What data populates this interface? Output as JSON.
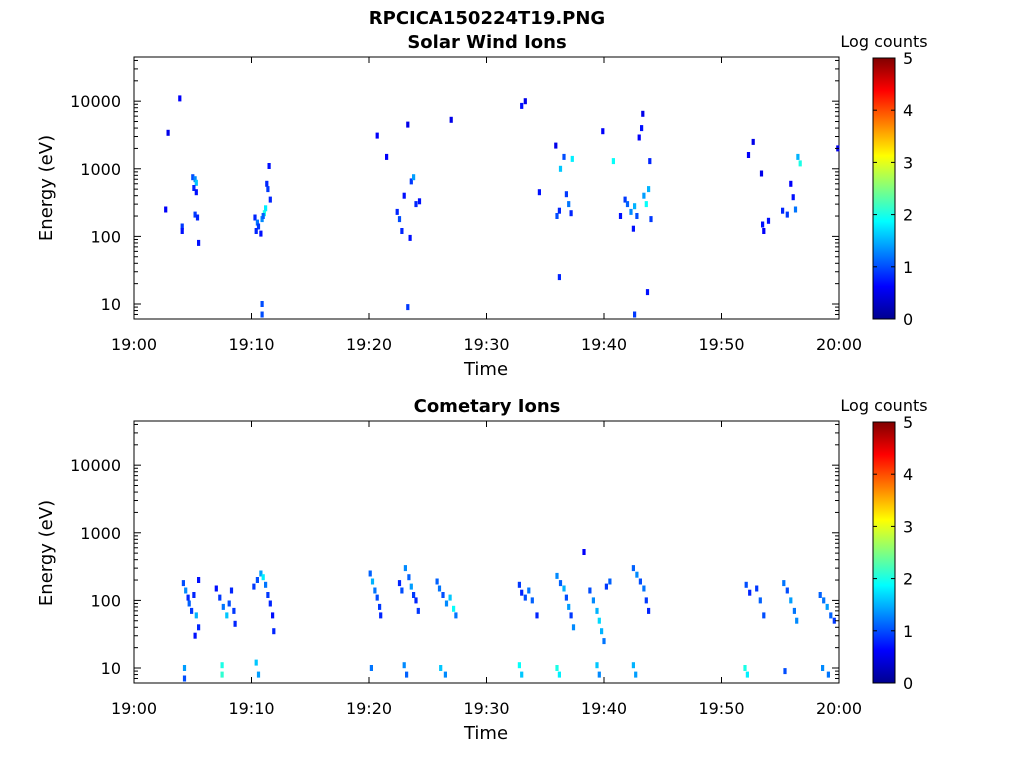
{
  "figure": {
    "title": "RPCICA150224T19.PNG"
  },
  "chart_data": [
    {
      "type": "heatmap",
      "title": "Solar Wind Ions",
      "xlabel": "Time",
      "ylabel": "Energy (eV)",
      "x_ticks": [
        "19:00",
        "19:10",
        "19:20",
        "19:30",
        "19:40",
        "19:50",
        "20:00"
      ],
      "x_range_minutes": [
        0,
        60
      ],
      "y_scale": "log",
      "y_ticks": [
        {
          "value": 10,
          "label": "10"
        },
        {
          "value": 100,
          "label": "100"
        },
        {
          "value": 1000,
          "label": "1000"
        },
        {
          "value": 10000,
          "label": "10000"
        }
      ],
      "ylim": [
        6,
        45000
      ],
      "colorbar": {
        "label": "Log counts",
        "ticks": [
          "0",
          "1",
          "2",
          "3",
          "4",
          "5"
        ],
        "range": [
          0,
          5
        ],
        "colormap": "jet"
      },
      "cells": [
        [
          3.9,
          11000,
          0.6
        ],
        [
          2.9,
          3400,
          0.5
        ],
        [
          2.7,
          250,
          0.6
        ],
        [
          4.1,
          140,
          0.9
        ],
        [
          4.1,
          120,
          0.7
        ],
        [
          5.0,
          750,
          1.0
        ],
        [
          5.2,
          700,
          1.3
        ],
        [
          5.3,
          620,
          1.6
        ],
        [
          5.1,
          520,
          0.8
        ],
        [
          5.3,
          450,
          0.7
        ],
        [
          5.2,
          210,
          0.9
        ],
        [
          5.4,
          190,
          0.8
        ],
        [
          5.5,
          80,
          0.7
        ],
        [
          10.3,
          190,
          0.8
        ],
        [
          10.5,
          160,
          1.2
        ],
        [
          10.6,
          140,
          0.9
        ],
        [
          10.4,
          120,
          0.8
        ],
        [
          10.8,
          110,
          0.7
        ],
        [
          10.9,
          180,
          1.3
        ],
        [
          11.1,
          220,
          2.0
        ],
        [
          11.2,
          260,
          1.8
        ],
        [
          11.0,
          200,
          1.1
        ],
        [
          11.3,
          600,
          0.8
        ],
        [
          11.5,
          1100,
          0.7
        ],
        [
          11.4,
          500,
          0.9
        ],
        [
          11.6,
          350,
          0.8
        ],
        [
          10.9,
          10,
          1.0
        ],
        [
          10.9,
          7,
          1.0
        ],
        [
          20.7,
          3100,
          0.6
        ],
        [
          21.5,
          1500,
          0.6
        ],
        [
          22.4,
          230,
          0.8
        ],
        [
          22.6,
          180,
          1.0
        ],
        [
          22.8,
          120,
          0.8
        ],
        [
          23.0,
          400,
          0.7
        ],
        [
          23.3,
          4500,
          0.5
        ],
        [
          23.6,
          650,
          0.9
        ],
        [
          23.8,
          750,
          1.4
        ],
        [
          24.0,
          300,
          0.8
        ],
        [
          24.3,
          330,
          0.7
        ],
        [
          23.5,
          95,
          0.7
        ],
        [
          23.3,
          9,
          0.9
        ],
        [
          27.0,
          5300,
          0.5
        ],
        [
          33.0,
          8500,
          0.7
        ],
        [
          33.3,
          10000,
          0.5
        ],
        [
          34.5,
          450,
          0.7
        ],
        [
          35.9,
          2200,
          0.5
        ],
        [
          36.0,
          200,
          1.0
        ],
        [
          36.2,
          240,
          0.8
        ],
        [
          36.3,
          1000,
          1.6
        ],
        [
          36.6,
          1500,
          1.0
        ],
        [
          36.8,
          420,
          0.9
        ],
        [
          37.0,
          300,
          1.2
        ],
        [
          37.2,
          220,
          0.8
        ],
        [
          37.3,
          1400,
          1.8
        ],
        [
          36.2,
          25,
          0.8
        ],
        [
          39.9,
          3600,
          0.6
        ],
        [
          40.8,
          1300,
          1.9
        ],
        [
          41.4,
          200,
          0.7
        ],
        [
          41.8,
          350,
          0.9
        ],
        [
          42.0,
          300,
          1.1
        ],
        [
          42.3,
          230,
          1.3
        ],
        [
          42.6,
          280,
          1.5
        ],
        [
          42.8,
          200,
          1.0
        ],
        [
          43.0,
          2900,
          0.6
        ],
        [
          43.2,
          4000,
          0.7
        ],
        [
          43.3,
          6500,
          0.5
        ],
        [
          43.4,
          400,
          1.4
        ],
        [
          43.6,
          300,
          1.9
        ],
        [
          43.8,
          500,
          1.5
        ],
        [
          43.9,
          1300,
          0.8
        ],
        [
          44.0,
          180,
          0.9
        ],
        [
          42.5,
          130,
          0.7
        ],
        [
          42.6,
          7,
          0.9
        ],
        [
          43.7,
          15,
          0.7
        ],
        [
          52.3,
          1600,
          0.6
        ],
        [
          52.7,
          2500,
          0.5
        ],
        [
          53.4,
          850,
          0.5
        ],
        [
          53.5,
          150,
          0.7
        ],
        [
          53.6,
          120,
          0.6
        ],
        [
          54.0,
          170,
          0.7
        ],
        [
          55.2,
          240,
          0.8
        ],
        [
          55.6,
          210,
          0.9
        ],
        [
          55.9,
          600,
          0.6
        ],
        [
          56.1,
          380,
          0.7
        ],
        [
          56.3,
          250,
          1.2
        ],
        [
          56.5,
          1500,
          1.5
        ],
        [
          56.7,
          1200,
          2.0
        ],
        [
          59.9,
          2000,
          0.5
        ]
      ]
    },
    {
      "type": "heatmap",
      "title": "Cometary Ions",
      "xlabel": "Time",
      "ylabel": "Energy (eV)",
      "x_ticks": [
        "19:00",
        "19:10",
        "19:20",
        "19:30",
        "19:40",
        "19:50",
        "20:00"
      ],
      "x_range_minutes": [
        0,
        60
      ],
      "y_scale": "log",
      "y_ticks": [
        {
          "value": 10,
          "label": "10"
        },
        {
          "value": 100,
          "label": "100"
        },
        {
          "value": 1000,
          "label": "1000"
        },
        {
          "value": 10000,
          "label": "10000"
        }
      ],
      "ylim": [
        6,
        45000
      ],
      "colorbar": {
        "label": "Log counts",
        "ticks": [
          "0",
          "1",
          "2",
          "3",
          "4",
          "5"
        ],
        "range": [
          0,
          5
        ],
        "colormap": "jet"
      },
      "cells": [
        [
          4.2,
          180,
          1.0
        ],
        [
          4.4,
          140,
          1.3
        ],
        [
          4.6,
          110,
          0.8
        ],
        [
          4.7,
          90,
          1.1
        ],
        [
          4.9,
          70,
          0.9
        ],
        [
          5.1,
          120,
          0.8
        ],
        [
          5.3,
          60,
          1.5
        ],
        [
          5.5,
          40,
          0.8
        ],
        [
          5.2,
          30,
          0.7
        ],
        [
          5.5,
          200,
          0.7
        ],
        [
          7.0,
          150,
          0.7
        ],
        [
          7.3,
          110,
          0.9
        ],
        [
          7.6,
          80,
          1.2
        ],
        [
          7.9,
          60,
          1.6
        ],
        [
          8.1,
          90,
          1.0
        ],
        [
          8.3,
          140,
          0.8
        ],
        [
          8.5,
          70,
          0.9
        ],
        [
          8.6,
          45,
          0.8
        ],
        [
          10.2,
          160,
          0.9
        ],
        [
          10.5,
          200,
          1.0
        ],
        [
          10.8,
          250,
          1.4
        ],
        [
          11.0,
          220,
          1.8
        ],
        [
          11.2,
          170,
          1.2
        ],
        [
          11.4,
          120,
          0.9
        ],
        [
          11.6,
          90,
          0.8
        ],
        [
          11.8,
          60,
          0.7
        ],
        [
          11.9,
          35,
          0.8
        ],
        [
          20.1,
          250,
          1.1
        ],
        [
          20.3,
          190,
          1.5
        ],
        [
          20.5,
          140,
          1.2
        ],
        [
          20.7,
          110,
          1.0
        ],
        [
          20.9,
          80,
          0.9
        ],
        [
          21.0,
          60,
          0.8
        ],
        [
          22.6,
          180,
          0.8
        ],
        [
          22.8,
          140,
          1.0
        ],
        [
          23.1,
          300,
          1.3
        ],
        [
          23.4,
          220,
          1.1
        ],
        [
          23.6,
          160,
          1.4
        ],
        [
          23.8,
          120,
          0.9
        ],
        [
          24.0,
          100,
          0.8
        ],
        [
          24.2,
          70,
          0.9
        ],
        [
          25.8,
          190,
          1.1
        ],
        [
          26.0,
          150,
          1.2
        ],
        [
          26.3,
          120,
          1.0
        ],
        [
          26.6,
          90,
          1.3
        ],
        [
          26.9,
          110,
          1.6
        ],
        [
          27.2,
          75,
          1.9
        ],
        [
          27.4,
          60,
          1.2
        ],
        [
          32.8,
          170,
          0.9
        ],
        [
          33.0,
          130,
          0.8
        ],
        [
          33.3,
          110,
          1.0
        ],
        [
          33.6,
          140,
          1.2
        ],
        [
          33.9,
          100,
          1.1
        ],
        [
          34.3,
          60,
          0.8
        ],
        [
          36.0,
          230,
          1.3
        ],
        [
          36.3,
          180,
          1.1
        ],
        [
          36.6,
          150,
          1.5
        ],
        [
          36.8,
          110,
          1.0
        ],
        [
          37.0,
          80,
          1.4
        ],
        [
          37.2,
          60,
          0.9
        ],
        [
          37.4,
          40,
          1.3
        ],
        [
          38.3,
          520,
          0.6
        ],
        [
          38.8,
          140,
          1.0
        ],
        [
          39.1,
          100,
          1.3
        ],
        [
          39.4,
          70,
          1.5
        ],
        [
          39.6,
          50,
          1.7
        ],
        [
          39.8,
          35,
          1.5
        ],
        [
          40.0,
          25,
          1.2
        ],
        [
          40.2,
          160,
          0.9
        ],
        [
          40.5,
          190,
          1.1
        ],
        [
          42.5,
          300,
          1.1
        ],
        [
          42.8,
          240,
          1.3
        ],
        [
          43.1,
          190,
          1.0
        ],
        [
          43.4,
          150,
          1.2
        ],
        [
          43.6,
          100,
          0.9
        ],
        [
          43.8,
          70,
          0.8
        ],
        [
          52.1,
          170,
          1.0
        ],
        [
          52.4,
          130,
          0.8
        ],
        [
          53.0,
          150,
          0.9
        ],
        [
          53.3,
          100,
          1.1
        ],
        [
          53.6,
          60,
          1.0
        ],
        [
          55.3,
          180,
          1.2
        ],
        [
          55.6,
          140,
          1.0
        ],
        [
          55.9,
          100,
          1.4
        ],
        [
          56.2,
          70,
          1.2
        ],
        [
          56.4,
          50,
          1.3
        ],
        [
          58.4,
          120,
          1.1
        ],
        [
          58.7,
          100,
          1.2
        ],
        [
          59.0,
          80,
          1.4
        ],
        [
          59.3,
          60,
          1.1
        ],
        [
          59.6,
          50,
          0.9
        ],
        [
          4.3,
          10,
          1.4
        ],
        [
          4.3,
          7,
          1.0
        ],
        [
          7.5,
          11,
          2.0
        ],
        [
          7.5,
          8,
          2.1
        ],
        [
          10.4,
          12,
          1.6
        ],
        [
          10.6,
          8,
          1.4
        ],
        [
          20.2,
          10,
          1.2
        ],
        [
          23.0,
          11,
          1.3
        ],
        [
          23.2,
          8,
          1.1
        ],
        [
          26.1,
          10,
          1.6
        ],
        [
          26.5,
          8,
          1.3
        ],
        [
          32.8,
          11,
          1.9
        ],
        [
          33.0,
          8,
          1.6
        ],
        [
          36.0,
          10,
          2.0
        ],
        [
          36.2,
          8,
          1.8
        ],
        [
          39.4,
          11,
          1.6
        ],
        [
          39.6,
          8,
          1.3
        ],
        [
          42.5,
          11,
          1.5
        ],
        [
          42.7,
          8,
          1.4
        ],
        [
          52.0,
          10,
          2.0
        ],
        [
          52.2,
          8,
          1.8
        ],
        [
          55.4,
          9,
          1.0
        ],
        [
          58.6,
          10,
          1.3
        ],
        [
          59.1,
          8,
          1.2
        ]
      ]
    }
  ]
}
